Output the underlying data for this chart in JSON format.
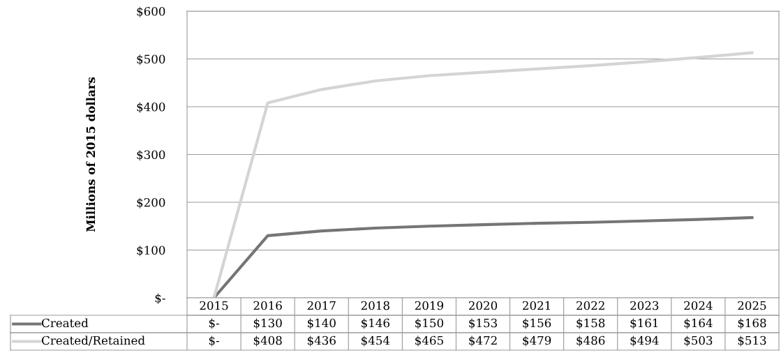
{
  "chart_data": {
    "type": "line",
    "ylabel": "Millions of 2015 dollars",
    "categories": [
      "2015",
      "2016",
      "2017",
      "2018",
      "2019",
      "2020",
      "2021",
      "2022",
      "2023",
      "2024",
      "2025"
    ],
    "series": [
      {
        "name": "Created",
        "color": "#757575",
        "values": [
          0,
          130,
          140,
          146,
          150,
          153,
          156,
          158,
          161,
          164,
          168
        ],
        "value_labels": [
          "$-",
          "$130",
          "$140",
          "$146",
          "$150",
          "$153",
          "$156",
          "$158",
          "$161",
          "$164",
          "$168"
        ]
      },
      {
        "name": "Created/Retained",
        "color": "#d4d4d4",
        "values": [
          0,
          408,
          436,
          454,
          465,
          472,
          479,
          486,
          494,
          503,
          513
        ],
        "value_labels": [
          "$-",
          "$408",
          "$436",
          "$454",
          "$465",
          "$472",
          "$479",
          "$486",
          "$494",
          "$503",
          "$513"
        ]
      }
    ],
    "ylim": [
      0,
      600
    ],
    "yticks": [
      {
        "value": 0,
        "label": "$-"
      },
      {
        "value": 100,
        "label": "$100"
      },
      {
        "value": 200,
        "label": "$200"
      },
      {
        "value": 300,
        "label": "$300"
      },
      {
        "value": 400,
        "label": "$400"
      },
      {
        "value": 500,
        "label": "$500"
      },
      {
        "value": 600,
        "label": "$600"
      }
    ],
    "grid": "y",
    "legend": "bottom",
    "marker": "none",
    "line_style": "solid"
  }
}
